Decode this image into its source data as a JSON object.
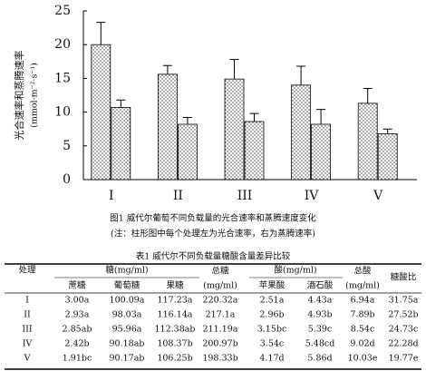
{
  "chart_data": {
    "type": "bar",
    "ylabel": "光合速率和蒸腾速率",
    "ylabel_unit": "(mmol·m⁻²·s⁻¹)",
    "categories": [
      "I",
      "II",
      "III",
      "IV",
      "V"
    ],
    "series": [
      {
        "values": [
          20,
          15.6,
          14.9,
          14,
          11.3
        ],
        "errors": [
          3.3,
          1.3,
          2.9,
          2.8,
          2.2
        ]
      },
      {
        "values": [
          10.7,
          8.2,
          8.6,
          8.2,
          6.8
        ],
        "errors": [
          1.1,
          1.0,
          1.2,
          2.2,
          0.7
        ]
      }
    ],
    "ylim": [
      0,
      25
    ],
    "yticks": [
      0,
      5,
      10,
      15,
      20,
      25
    ],
    "caption": "图1  威代尔葡萄不同负载量的光合速率和蒸腾速度变化",
    "note": "(注：柱形图中每个处理左为光合速率，右为蒸腾速率)"
  },
  "table": {
    "title": "表1  威代尔不同负载量糖酸含量差异比较",
    "header_top": [
      "处理",
      "糖(mg/ml)",
      "总糖",
      "酸(mg/ml)",
      "总酸",
      "糖酸比"
    ],
    "header_sub": [
      "蔗糖",
      "葡萄糖",
      "果糖",
      "(mg/ml)",
      "苹果酸",
      "酒石酸",
      "(mg/ml)"
    ],
    "rows": [
      [
        "I",
        "3.00a",
        "100.09a",
        "117.23a",
        "220.32a",
        "2.51a",
        "4.43a",
        "6.94a",
        "31.75a"
      ],
      [
        "II",
        "2.93a",
        "98.03a",
        "116.14a",
        "217.1a",
        "2.96b",
        "4.93b",
        "7.89b",
        "27.52b"
      ],
      [
        "III",
        "2.85ab",
        "95.96a",
        "112.38ab",
        "211.19a",
        "3.15bc",
        "5.39c",
        "8.54c",
        "24.73c"
      ],
      [
        "IV",
        "2.42b",
        "90.18ab",
        "108.37b",
        "200.97b",
        "3.54c",
        "5.48cd",
        "9.02d",
        "22.28d"
      ],
      [
        "V",
        "1.91bc",
        "90.17ab",
        "106.25b",
        "198.33b",
        "4.17d",
        "5.86d",
        "10.03e",
        "19.77e"
      ]
    ]
  }
}
